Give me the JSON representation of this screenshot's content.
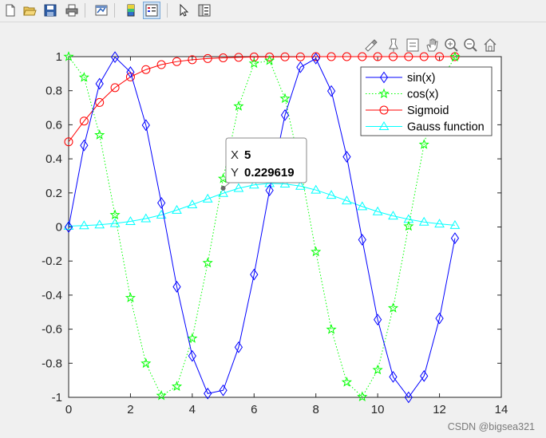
{
  "toolbar": {
    "items": [
      "new-file-icon",
      "open-folder-icon",
      "save-icon",
      "print-icon",
      "link-plot-icon",
      "colorbar-icon",
      "legend-icon",
      "pointer-icon",
      "property-inspector-icon"
    ]
  },
  "axes_toolbar": {
    "items": [
      "brush-icon",
      "data-cursor-icon",
      "legend-toggle-icon",
      "pan-hand-icon",
      "zoom-in-icon",
      "zoom-out-icon",
      "home-icon"
    ]
  },
  "datatip": {
    "x_label": "X",
    "x_value": "5",
    "y_label": "Y",
    "y_value": "0.229619"
  },
  "credit": "CSDN @bigsea321",
  "chart_data": {
    "type": "line",
    "title": "",
    "xlabel": "",
    "ylabel": "",
    "xlim": [
      0,
      14
    ],
    "ylim": [
      -1,
      1
    ],
    "x_ticks": [
      "0",
      "2",
      "4",
      "6",
      "8",
      "10",
      "12",
      "14"
    ],
    "y_ticks": [
      "-1",
      "-0.8",
      "-0.6",
      "-0.4",
      "-0.2",
      "0",
      "0.2",
      "0.4",
      "0.6",
      "0.8",
      "1"
    ],
    "grid": false,
    "legend_position": "top-right",
    "series": [
      {
        "name": "sin(x)",
        "color": "#0000ff",
        "marker": "diamond",
        "line_style": "solid",
        "x": [
          0,
          0.5,
          1,
          1.5,
          2,
          2.5,
          3,
          3.5,
          4,
          4.5,
          5,
          5.5,
          6,
          6.5,
          7,
          7.5,
          8,
          8.5,
          9,
          9.5,
          10,
          10.5,
          11,
          11.5,
          12,
          12.5
        ],
        "y": [
          0,
          0.479,
          0.841,
          0.997,
          0.909,
          0.598,
          0.141,
          -0.351,
          -0.757,
          -0.978,
          -0.959,
          -0.706,
          -0.279,
          0.215,
          0.657,
          0.938,
          0.989,
          0.798,
          0.412,
          -0.075,
          -0.544,
          -0.88,
          -1.0,
          -0.875,
          -0.537,
          -0.066
        ]
      },
      {
        "name": "cos(x)",
        "color": "#00ff00",
        "marker": "pentagram",
        "line_style": "dotted",
        "x": [
          0,
          0.5,
          1,
          1.5,
          2,
          2.5,
          3,
          3.5,
          4,
          4.5,
          5,
          5.5,
          6,
          6.5,
          7,
          7.5,
          8,
          8.5,
          9,
          9.5,
          10,
          10.5,
          11,
          11.5,
          12,
          12.5
        ],
        "y": [
          1,
          0.878,
          0.54,
          0.071,
          -0.416,
          -0.801,
          -0.99,
          -0.936,
          -0.654,
          -0.211,
          0.284,
          0.709,
          0.96,
          0.977,
          0.754,
          0.347,
          -0.146,
          -0.602,
          -0.911,
          -0.997,
          -0.839,
          -0.476,
          0.004,
          0.484,
          0.844,
          0.998
        ]
      },
      {
        "name": "Sigmoid",
        "color": "#ff0000",
        "marker": "circle",
        "line_style": "solid",
        "x": [
          0,
          0.5,
          1,
          1.5,
          2,
          2.5,
          3,
          3.5,
          4,
          4.5,
          5,
          5.5,
          6,
          6.5,
          7,
          7.5,
          8,
          8.5,
          9,
          9.5,
          10,
          10.5,
          11,
          11.5,
          12,
          12.5
        ],
        "y": [
          0.5,
          0.622,
          0.731,
          0.818,
          0.881,
          0.924,
          0.953,
          0.971,
          0.982,
          0.989,
          0.993,
          0.996,
          0.998,
          0.998,
          0.999,
          0.999,
          1.0,
          1.0,
          1.0,
          1.0,
          1.0,
          1.0,
          1.0,
          1.0,
          1.0,
          1.0
        ]
      },
      {
        "name": "Gauss function",
        "color": "#00ffff",
        "marker": "triangle",
        "line_style": "solid",
        "x": [
          0,
          0.5,
          1,
          1.5,
          2,
          2.5,
          3,
          3.5,
          4,
          4.5,
          5,
          5.5,
          6,
          6.5,
          7,
          7.5,
          8,
          8.5,
          9,
          9.5,
          10,
          10.5,
          11,
          11.5,
          12,
          12.5
        ],
        "y": [
          0.005,
          0.008,
          0.013,
          0.021,
          0.033,
          0.049,
          0.071,
          0.099,
          0.131,
          0.165,
          0.198,
          0.227,
          0.247,
          0.256,
          0.253,
          0.24,
          0.217,
          0.187,
          0.154,
          0.12,
          0.09,
          0.065,
          0.045,
          0.029,
          0.018,
          0.01
        ]
      }
    ]
  }
}
